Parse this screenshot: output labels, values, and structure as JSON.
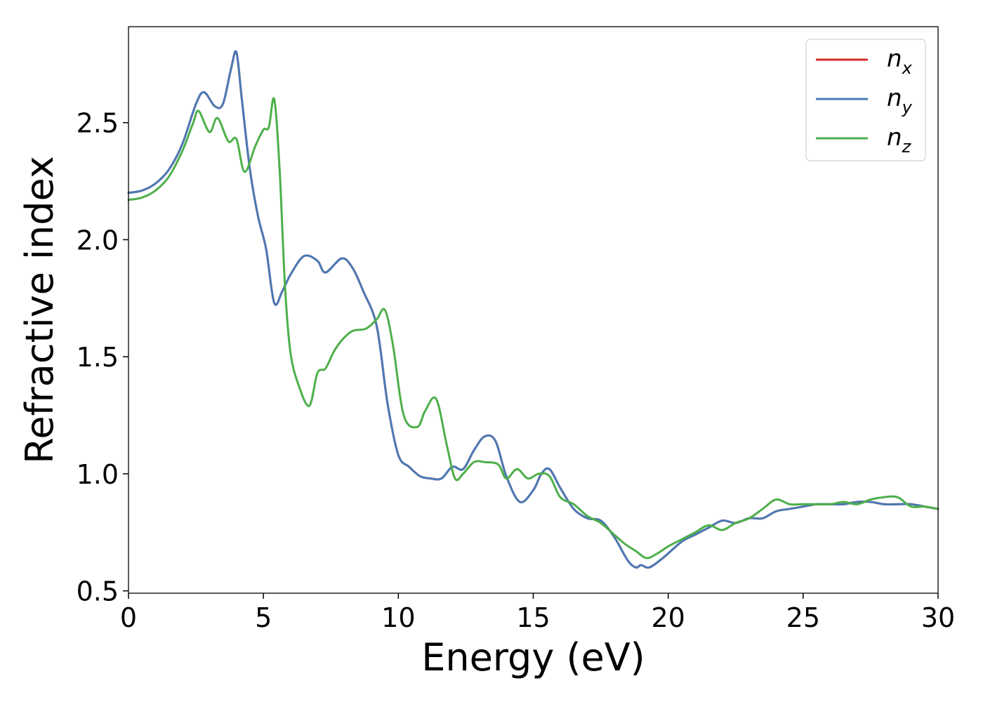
{
  "chart_data": {
    "type": "line",
    "title": "",
    "xlabel": "Energy (eV)",
    "ylabel": "Refractive index",
    "xlim": [
      0,
      30
    ],
    "ylim": [
      0.49,
      2.91
    ],
    "xticks": [
      "0",
      "5",
      "10",
      "15",
      "20",
      "25",
      "30"
    ],
    "yticks": [
      "0.5",
      "1.0",
      "1.5",
      "2.0",
      "2.5"
    ],
    "legend_position": "top-right",
    "grid": false,
    "series": [
      {
        "name": "n_x",
        "legend_base": "n",
        "legend_sub": "x",
        "color": "#d62728",
        "x": [
          0,
          0.5,
          1.0,
          1.5,
          2.0,
          2.5,
          2.8,
          3.2,
          3.5,
          3.8,
          4.0,
          4.2,
          4.5,
          4.8,
          5.1,
          5.4,
          5.7,
          6.0,
          6.5,
          7.0,
          7.3,
          7.9,
          8.3,
          8.7,
          9.2,
          9.6,
          10.0,
          10.4,
          10.8,
          11.2,
          11.6,
          12.0,
          12.4,
          12.8,
          13.2,
          13.6,
          14.0,
          14.5,
          15.0,
          15.3,
          15.6,
          16.0,
          16.5,
          17.0,
          17.5,
          18.0,
          18.5,
          18.8,
          19.0,
          19.3,
          19.8,
          20.5,
          21.0,
          21.5,
          22.0,
          22.5,
          23.0,
          23.5,
          24.0,
          24.5,
          25.0,
          25.5,
          26.0,
          26.5,
          27.0,
          27.5,
          28.0,
          28.5,
          29.0,
          29.5,
          30.0
        ],
        "y": [
          2.2,
          2.21,
          2.24,
          2.3,
          2.41,
          2.58,
          2.63,
          2.57,
          2.58,
          2.73,
          2.8,
          2.6,
          2.3,
          2.1,
          1.96,
          1.73,
          1.78,
          1.85,
          1.93,
          1.91,
          1.86,
          1.92,
          1.88,
          1.78,
          1.63,
          1.3,
          1.08,
          1.03,
          0.99,
          0.98,
          0.98,
          1.03,
          1.02,
          1.1,
          1.16,
          1.14,
          0.99,
          0.88,
          0.93,
          1.0,
          1.02,
          0.94,
          0.85,
          0.81,
          0.8,
          0.73,
          0.63,
          0.6,
          0.61,
          0.6,
          0.64,
          0.71,
          0.74,
          0.77,
          0.8,
          0.79,
          0.81,
          0.81,
          0.84,
          0.85,
          0.86,
          0.87,
          0.87,
          0.87,
          0.88,
          0.88,
          0.87,
          0.87,
          0.87,
          0.86,
          0.85
        ]
      },
      {
        "name": "n_y",
        "legend_base": "n",
        "legend_sub": "y",
        "color": "#4a7ab5",
        "x": [
          0,
          0.5,
          1.0,
          1.5,
          2.0,
          2.5,
          2.8,
          3.2,
          3.5,
          3.8,
          4.0,
          4.2,
          4.5,
          4.8,
          5.1,
          5.4,
          5.7,
          6.0,
          6.5,
          7.0,
          7.3,
          7.9,
          8.3,
          8.7,
          9.2,
          9.6,
          10.0,
          10.4,
          10.8,
          11.2,
          11.6,
          12.0,
          12.4,
          12.8,
          13.2,
          13.6,
          14.0,
          14.5,
          15.0,
          15.3,
          15.6,
          16.0,
          16.5,
          17.0,
          17.5,
          18.0,
          18.5,
          18.8,
          19.0,
          19.3,
          19.8,
          20.5,
          21.0,
          21.5,
          22.0,
          22.5,
          23.0,
          23.5,
          24.0,
          24.5,
          25.0,
          25.5,
          26.0,
          26.5,
          27.0,
          27.5,
          28.0,
          28.5,
          29.0,
          29.5,
          30.0
        ],
        "y": [
          2.2,
          2.21,
          2.24,
          2.3,
          2.41,
          2.58,
          2.63,
          2.57,
          2.58,
          2.73,
          2.8,
          2.6,
          2.3,
          2.1,
          1.96,
          1.73,
          1.78,
          1.85,
          1.93,
          1.91,
          1.86,
          1.92,
          1.88,
          1.78,
          1.63,
          1.3,
          1.08,
          1.03,
          0.99,
          0.98,
          0.98,
          1.03,
          1.02,
          1.1,
          1.16,
          1.14,
          0.99,
          0.88,
          0.93,
          1.0,
          1.02,
          0.94,
          0.85,
          0.81,
          0.8,
          0.73,
          0.63,
          0.6,
          0.61,
          0.6,
          0.64,
          0.71,
          0.74,
          0.77,
          0.8,
          0.79,
          0.81,
          0.81,
          0.84,
          0.85,
          0.86,
          0.87,
          0.87,
          0.87,
          0.88,
          0.88,
          0.87,
          0.87,
          0.87,
          0.86,
          0.85
        ]
      },
      {
        "name": "n_z",
        "legend_base": "n",
        "legend_sub": "z",
        "color": "#4daf4a",
        "x": [
          0,
          0.5,
          1.0,
          1.5,
          2.0,
          2.4,
          2.6,
          3.0,
          3.3,
          3.7,
          4.0,
          4.3,
          4.7,
          5.0,
          5.2,
          5.4,
          5.6,
          5.8,
          6.0,
          6.3,
          6.7,
          7.0,
          7.3,
          7.6,
          7.9,
          8.3,
          8.8,
          9.2,
          9.5,
          9.8,
          10.2,
          10.7,
          11.0,
          11.4,
          11.8,
          12.1,
          12.4,
          12.8,
          13.2,
          13.7,
          14.0,
          14.4,
          14.8,
          15.2,
          15.6,
          16.0,
          16.5,
          17.0,
          17.5,
          18.0,
          18.4,
          18.8,
          19.2,
          19.6,
          20.0,
          20.5,
          21.0,
          21.5,
          22.0,
          22.5,
          23.0,
          23.5,
          24.0,
          24.5,
          25.0,
          25.5,
          26.0,
          26.5,
          27.0,
          27.5,
          28.0,
          28.5,
          29.0,
          29.5,
          30.0
        ],
        "y": [
          2.17,
          2.18,
          2.21,
          2.27,
          2.38,
          2.5,
          2.55,
          2.46,
          2.52,
          2.42,
          2.43,
          2.29,
          2.4,
          2.47,
          2.48,
          2.6,
          2.3,
          1.8,
          1.52,
          1.38,
          1.29,
          1.43,
          1.45,
          1.52,
          1.57,
          1.61,
          1.62,
          1.66,
          1.7,
          1.55,
          1.25,
          1.2,
          1.27,
          1.32,
          1.12,
          0.98,
          1.0,
          1.05,
          1.05,
          1.04,
          0.98,
          1.02,
          0.98,
          1.0,
          0.99,
          0.9,
          0.87,
          0.82,
          0.79,
          0.74,
          0.7,
          0.67,
          0.64,
          0.66,
          0.69,
          0.72,
          0.75,
          0.78,
          0.76,
          0.79,
          0.81,
          0.85,
          0.89,
          0.87,
          0.87,
          0.87,
          0.87,
          0.88,
          0.87,
          0.89,
          0.9,
          0.9,
          0.86,
          0.86,
          0.85
        ]
      }
    ]
  }
}
